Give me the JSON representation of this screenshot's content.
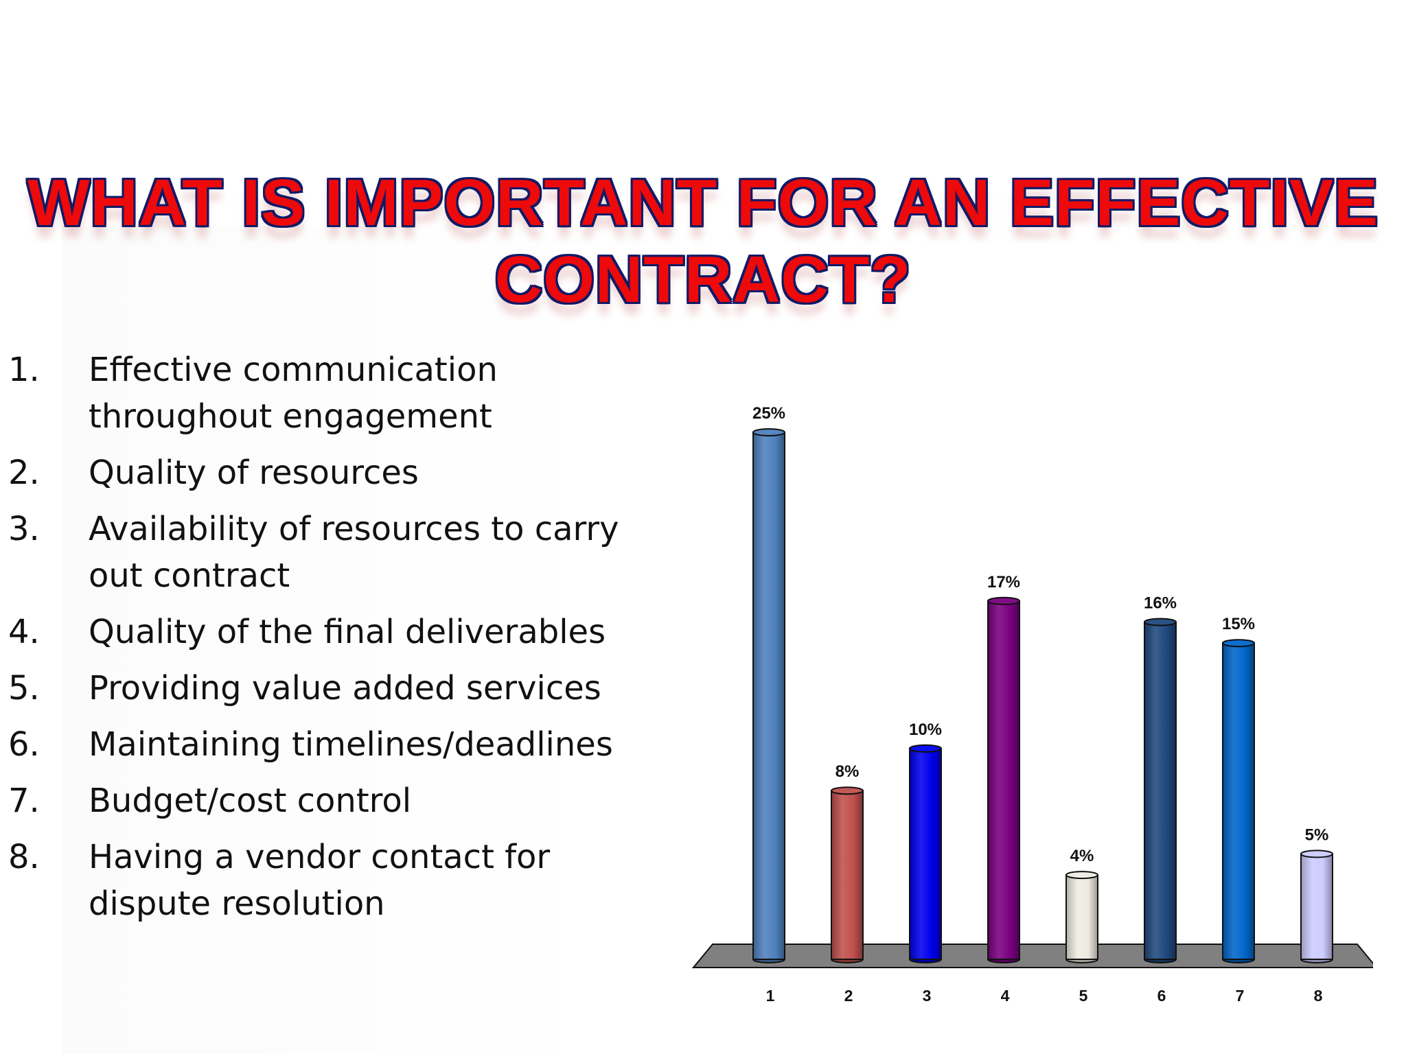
{
  "title": {
    "line1": "WHAT IS IMPORTANT FOR AN EFFECTIVE",
    "line2": "CONTRACT?"
  },
  "list": [
    {
      "number": "1.",
      "text": "Effective communication throughout engagement"
    },
    {
      "number": "2.",
      "text": "Quality of resources"
    },
    {
      "number": "3.",
      "text": "Availability of resources to carry out contract"
    },
    {
      "number": "4.",
      "text": "Quality of the final deliverables"
    },
    {
      "number": "5.",
      "text": "Providing value added services"
    },
    {
      "number": "6.",
      "text": "Maintaining timelines/deadlines"
    },
    {
      "number": "7.",
      "text": "Budget/cost control"
    },
    {
      "number": "8.",
      "text": "Having a vendor contact for dispute resolution"
    }
  ],
  "chart_data": {
    "type": "bar",
    "categories": [
      "1",
      "2",
      "3",
      "4",
      "5",
      "6",
      "7",
      "8"
    ],
    "values": [
      25,
      8,
      10,
      17,
      4,
      16,
      15,
      5
    ],
    "data_labels": [
      "25%",
      "8%",
      "10%",
      "17%",
      "4%",
      "16%",
      "15%",
      "5%"
    ],
    "colors": [
      "#4f81bd",
      "#c0504d",
      "#0000ee",
      "#7a0080",
      "#eeece1",
      "#1f497d",
      "#0066cc",
      "#ccccff"
    ],
    "floor_color": "#808080",
    "ylim": [
      0,
      25
    ],
    "grid": false,
    "legend": "none",
    "style": "3d-cylinder"
  }
}
